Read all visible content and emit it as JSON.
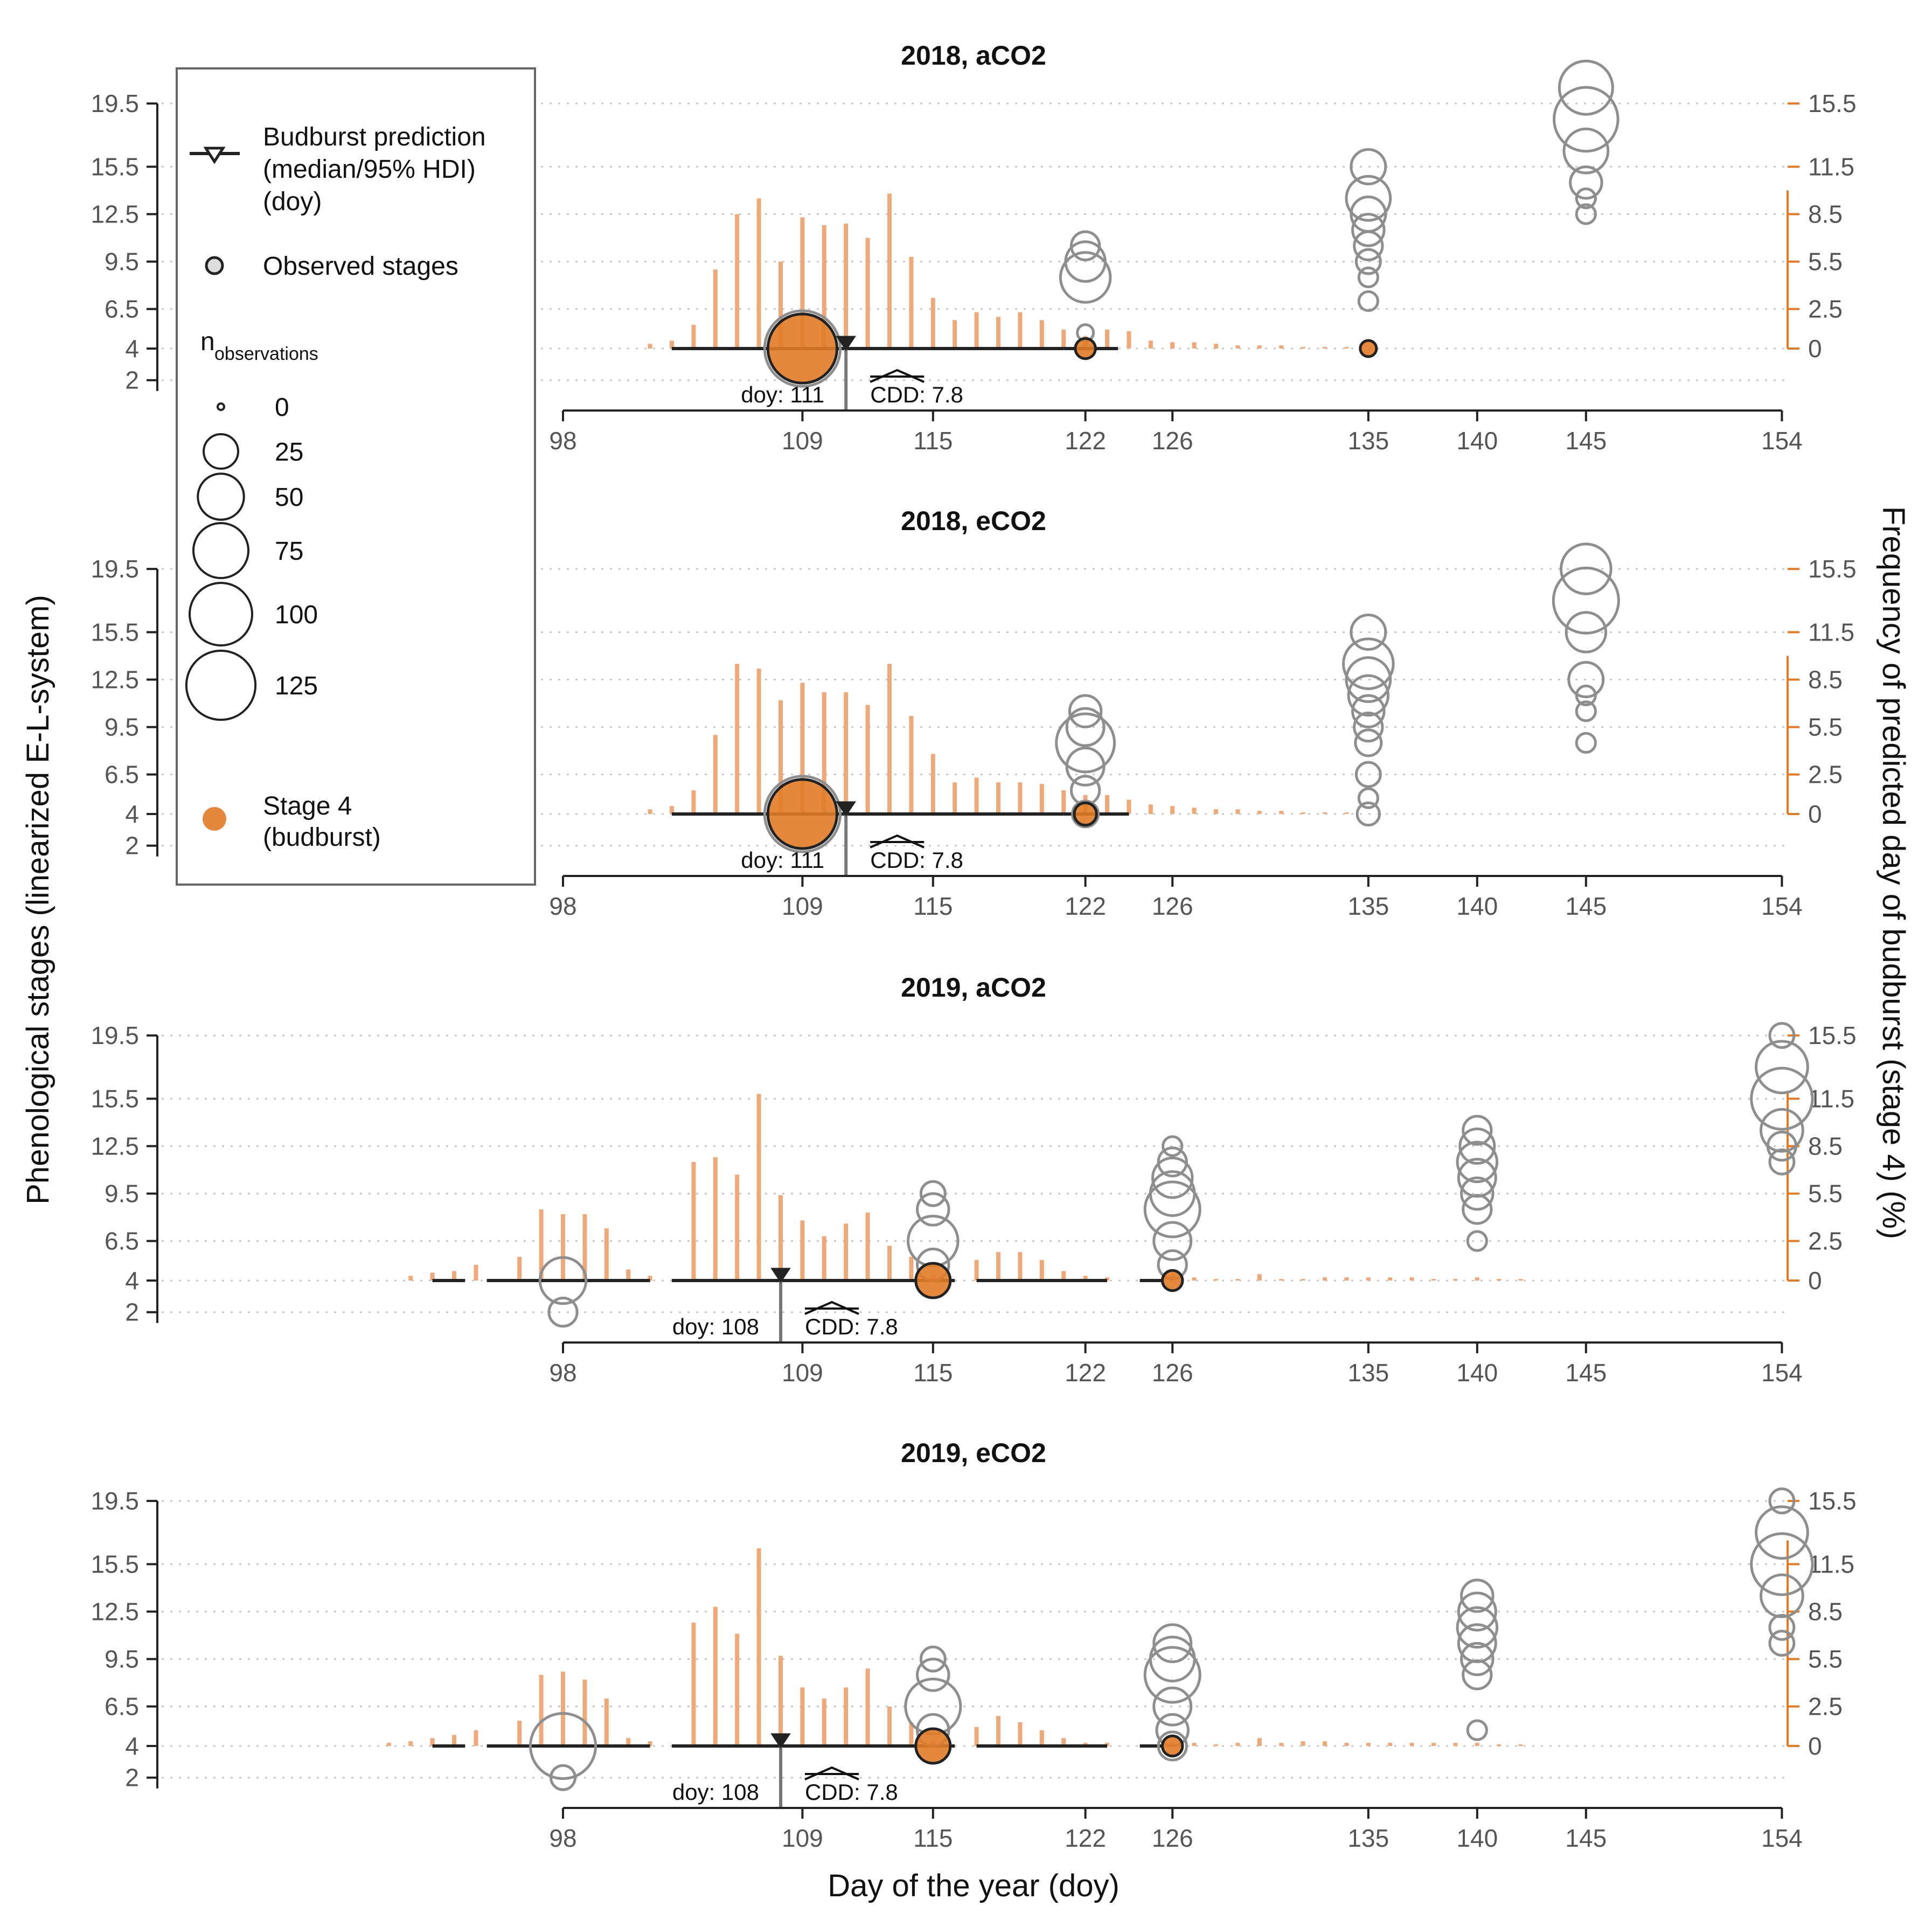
{
  "ylabel_left": "Phenological stages (linearized E-L-system)",
  "ylabel_right": "Frequency of predicted day of budburst (stage 4) (%)",
  "xlabel": "Day of the year (doy)",
  "legend": {
    "prediction_label": [
      "Budburst prediction",
      "(median/95% HDI)",
      "(doy)"
    ],
    "observed_label": "Observed stages",
    "n_title": "n",
    "n_sub": "observations",
    "size_levels": [
      "0",
      "25",
      "50",
      "75",
      "100",
      "125"
    ],
    "stage4_label": [
      "Stage 4",
      "(budburst)"
    ]
  },
  "colors": {
    "orange": "#E07B28",
    "bar": "#EDA979",
    "grey": "#8E8E8E",
    "dark": "#222222",
    "grid": "#C8C8C8",
    "text": "#555555"
  },
  "chart_data": {
    "type": "bar",
    "x_ticks": [
      98,
      109,
      115,
      122,
      126,
      135,
      140,
      145,
      154
    ],
    "y_left_ticks": [
      "19.5",
      "15.5",
      "12.5",
      "9.5",
      "6.5",
      "4",
      "2"
    ],
    "y_right_ticks": [
      "15.5",
      "11.5",
      "8.5",
      "5.5",
      "2.5",
      "0"
    ],
    "panels": [
      {
        "title": "2018, aCO2",
        "freq_x": [
          102,
          103,
          104,
          105,
          106,
          107,
          108,
          109,
          110,
          111,
          112,
          113,
          114,
          115,
          116,
          117,
          118,
          119,
          120,
          121,
          122,
          123,
          124,
          125,
          126,
          127,
          128,
          129,
          130,
          131,
          132,
          133,
          134
        ],
        "freq_y": [
          0.3,
          0.5,
          1.5,
          5,
          8.5,
          9.5,
          5.5,
          8.3,
          7.8,
          7.9,
          7,
          9.8,
          5.8,
          3.2,
          1.8,
          2.3,
          2,
          2.3,
          1.8,
          1.2,
          0.8,
          1.2,
          1.1,
          0.5,
          0.4,
          0.4,
          0.3,
          0.2,
          0.2,
          0.2,
          0.1,
          0.1,
          0.1
        ],
        "hdi_segments": [
          [
            103,
            121
          ],
          [
            121,
            123.5
          ]
        ],
        "median": 111,
        "doy_label": "doy: 111",
        "cdd_label": "CDD: 7.8",
        "obs": [
          {
            "x": 109,
            "y": 4,
            "n": 125,
            "orange": true
          },
          {
            "x": 122,
            "y": 4,
            "n": 6,
            "orange": true
          },
          {
            "x": 122,
            "y": 8.5,
            "n": 60
          },
          {
            "x": 122,
            "y": 9.5,
            "n": 35
          },
          {
            "x": 122,
            "y": 10.5,
            "n": 15
          },
          {
            "x": 122,
            "y": 5,
            "n": 3
          },
          {
            "x": 135,
            "y": 4,
            "n": 3,
            "orange": true
          },
          {
            "x": 135,
            "y": 7,
            "n": 5
          },
          {
            "x": 135,
            "y": 8.5,
            "n": 5
          },
          {
            "x": 135,
            "y": 9.5,
            "n": 10
          },
          {
            "x": 135,
            "y": 10.5,
            "n": 15
          },
          {
            "x": 135,
            "y": 11.5,
            "n": 20
          },
          {
            "x": 135,
            "y": 12.5,
            "n": 25
          },
          {
            "x": 135,
            "y": 13.5,
            "n": 45
          },
          {
            "x": 135,
            "y": 15.5,
            "n": 25
          },
          {
            "x": 145,
            "y": 12.5,
            "n": 5
          },
          {
            "x": 145,
            "y": 13.5,
            "n": 5
          },
          {
            "x": 145,
            "y": 14.5,
            "n": 20
          },
          {
            "x": 145,
            "y": 16.5,
            "n": 45
          },
          {
            "x": 145,
            "y": 18.5,
            "n": 105
          },
          {
            "x": 145,
            "y": 20.5,
            "n": 70
          }
        ]
      },
      {
        "title": "2018, eCO2",
        "freq_x": [
          102,
          103,
          104,
          105,
          106,
          107,
          108,
          109,
          110,
          111,
          112,
          113,
          114,
          115,
          116,
          117,
          118,
          119,
          120,
          121,
          122,
          123,
          124,
          125,
          126,
          127,
          128,
          129,
          130,
          131,
          132,
          133,
          134
        ],
        "freq_y": [
          0.3,
          0.5,
          1.5,
          5,
          9.5,
          9.2,
          7.2,
          8.3,
          7.7,
          7.7,
          6.9,
          9.5,
          6.2,
          3.8,
          2,
          2.3,
          2,
          2,
          1.9,
          1.5,
          1.2,
          1.2,
          0.9,
          0.6,
          0.5,
          0.4,
          0.3,
          0.3,
          0.2,
          0.2,
          0.1,
          0.1,
          0.1
        ],
        "hdi_segments": [
          [
            103,
            121
          ],
          [
            121,
            124
          ]
        ],
        "median": 111,
        "doy_label": "doy: 111",
        "cdd_label": "CDD: 7.8",
        "obs": [
          {
            "x": 109,
            "y": 4,
            "n": 125,
            "orange": true
          },
          {
            "x": 122,
            "y": 4,
            "n": 8,
            "orange": true
          },
          {
            "x": 122,
            "y": 4,
            "n": 12
          },
          {
            "x": 122,
            "y": 5.5,
            "n": 15
          },
          {
            "x": 122,
            "y": 7,
            "n": 30
          },
          {
            "x": 122,
            "y": 8.5,
            "n": 85
          },
          {
            "x": 122,
            "y": 9.5,
            "n": 30
          },
          {
            "x": 122,
            "y": 10.5,
            "n": 20
          },
          {
            "x": 135,
            "y": 4,
            "n": 8
          },
          {
            "x": 135,
            "y": 5,
            "n": 5
          },
          {
            "x": 135,
            "y": 6.5,
            "n": 10
          },
          {
            "x": 135,
            "y": 8.5,
            "n": 12
          },
          {
            "x": 135,
            "y": 9.5,
            "n": 15
          },
          {
            "x": 135,
            "y": 10.5,
            "n": 20
          },
          {
            "x": 135,
            "y": 11.5,
            "n": 35
          },
          {
            "x": 135,
            "y": 12.5,
            "n": 45
          },
          {
            "x": 135,
            "y": 13.5,
            "n": 60
          },
          {
            "x": 135,
            "y": 15.5,
            "n": 25
          },
          {
            "x": 145,
            "y": 8.5,
            "n": 5
          },
          {
            "x": 145,
            "y": 10.5,
            "n": 5
          },
          {
            "x": 145,
            "y": 11.5,
            "n": 5
          },
          {
            "x": 145,
            "y": 12.5,
            "n": 25
          },
          {
            "x": 145,
            "y": 15.5,
            "n": 35
          },
          {
            "x": 145,
            "y": 17.5,
            "n": 110
          },
          {
            "x": 145,
            "y": 19.5,
            "n": 60
          }
        ]
      },
      {
        "title": "2019, aCO2",
        "freq_x": [
          91,
          92,
          93,
          94,
          96,
          97,
          98,
          99,
          100,
          101,
          102,
          104,
          105,
          106,
          107,
          108,
          109,
          110,
          111,
          112,
          113,
          114,
          115,
          117,
          118,
          119,
          120,
          121,
          122,
          123,
          126,
          127,
          128,
          129,
          130,
          131,
          132,
          133,
          134,
          135,
          136,
          137,
          138,
          139,
          140,
          141,
          142
        ],
        "freq_y": [
          0.3,
          0.5,
          0.6,
          1,
          1.5,
          4.5,
          4.2,
          4.2,
          3.3,
          0.7,
          0.3,
          7.5,
          7.8,
          6.7,
          11.8,
          5.4,
          3.8,
          2.8,
          3.6,
          4.3,
          2.2,
          1.5,
          0.3,
          1.3,
          1.8,
          1.8,
          1.3,
          0.6,
          0.3,
          0.2,
          0.4,
          0.2,
          0.1,
          0.1,
          0.4,
          0.1,
          0.1,
          0.2,
          0.2,
          0.2,
          0.2,
          0.2,
          0.1,
          0.1,
          0.2,
          0.1,
          0.1
        ],
        "hdi_segments": [
          [
            92,
            93.5
          ],
          [
            94.5,
            102
          ],
          [
            103,
            116
          ],
          [
            117,
            123
          ],
          [
            124.5,
            125.5
          ]
        ],
        "median": 108,
        "doy_label": "doy: 108",
        "cdd_label": "CDD: 7.8",
        "obs": [
          {
            "x": 98,
            "y": 4,
            "n": 50
          },
          {
            "x": 98,
            "y": 2,
            "n": 15
          },
          {
            "x": 115,
            "y": 4,
            "n": 25,
            "orange": true
          },
          {
            "x": 115,
            "y": 5,
            "n": 20
          },
          {
            "x": 115,
            "y": 6.5,
            "n": 60
          },
          {
            "x": 115,
            "y": 8.5,
            "n": 20
          },
          {
            "x": 115,
            "y": 9.5,
            "n": 10
          },
          {
            "x": 126,
            "y": 4,
            "n": 6,
            "orange": true
          },
          {
            "x": 126,
            "y": 5,
            "n": 15
          },
          {
            "x": 126,
            "y": 6.5,
            "n": 30
          },
          {
            "x": 126,
            "y": 8.5,
            "n": 75
          },
          {
            "x": 126,
            "y": 9.5,
            "n": 45
          },
          {
            "x": 126,
            "y": 10.5,
            "n": 35
          },
          {
            "x": 126,
            "y": 11.5,
            "n": 15
          },
          {
            "x": 126,
            "y": 12.5,
            "n": 5
          },
          {
            "x": 140,
            "y": 6.5,
            "n": 5
          },
          {
            "x": 140,
            "y": 8.5,
            "n": 15
          },
          {
            "x": 140,
            "y": 9.5,
            "n": 20
          },
          {
            "x": 140,
            "y": 10.5,
            "n": 30
          },
          {
            "x": 140,
            "y": 11.5,
            "n": 35
          },
          {
            "x": 140,
            "y": 12.5,
            "n": 25
          },
          {
            "x": 140,
            "y": 13.5,
            "n": 15
          },
          {
            "x": 154,
            "y": 11.5,
            "n": 10
          },
          {
            "x": 154,
            "y": 12.5,
            "n": 15
          },
          {
            "x": 154,
            "y": 13.5,
            "n": 40
          },
          {
            "x": 154,
            "y": 15.5,
            "n": 95
          },
          {
            "x": 154,
            "y": 17.5,
            "n": 65
          },
          {
            "x": 154,
            "y": 19.5,
            "n": 10
          }
        ]
      },
      {
        "title": "2019, eCO2",
        "freq_x": [
          90,
          91,
          92,
          93,
          94,
          96,
          97,
          98,
          99,
          100,
          101,
          102,
          104,
          105,
          106,
          107,
          108,
          109,
          110,
          111,
          112,
          113,
          114,
          115,
          117,
          118,
          119,
          120,
          121,
          122,
          123,
          126,
          127,
          128,
          129,
          130,
          131,
          132,
          133,
          134,
          135,
          136,
          137,
          138,
          139,
          140,
          141,
          142
        ],
        "freq_y": [
          0.2,
          0.3,
          0.5,
          0.7,
          1,
          1.6,
          4.5,
          4.7,
          4.2,
          3,
          0.5,
          0.3,
          7.8,
          8.8,
          7.1,
          12.5,
          5.7,
          3.7,
          3,
          3.7,
          4.9,
          2.5,
          1.5,
          0.3,
          1.2,
          1.9,
          1.5,
          1,
          0.5,
          0.2,
          0.2,
          0.2,
          0.2,
          0.1,
          0.2,
          0.5,
          0.2,
          0.3,
          0.3,
          0.2,
          0.2,
          0.2,
          0.2,
          0.2,
          0.2,
          0.2,
          0.1,
          0.1
        ],
        "hdi_segments": [
          [
            92,
            93.5
          ],
          [
            94.5,
            102
          ],
          [
            103,
            116
          ],
          [
            117,
            123
          ],
          [
            124.5,
            125.5
          ]
        ],
        "median": 108,
        "doy_label": "doy: 108",
        "cdd_label": "CDD: 7.8",
        "obs": [
          {
            "x": 98,
            "y": 4,
            "n": 110
          },
          {
            "x": 98,
            "y": 2,
            "n": 10
          },
          {
            "x": 115,
            "y": 4,
            "n": 25,
            "orange": true
          },
          {
            "x": 115,
            "y": 5,
            "n": 20
          },
          {
            "x": 115,
            "y": 6.5,
            "n": 75
          },
          {
            "x": 115,
            "y": 8.5,
            "n": 20
          },
          {
            "x": 115,
            "y": 9.5,
            "n": 10
          },
          {
            "x": 126,
            "y": 4,
            "n": 6,
            "orange": true
          },
          {
            "x": 126,
            "y": 4,
            "n": 15
          },
          {
            "x": 126,
            "y": 5,
            "n": 20
          },
          {
            "x": 126,
            "y": 6.5,
            "n": 30
          },
          {
            "x": 126,
            "y": 8.5,
            "n": 75
          },
          {
            "x": 126,
            "y": 9.5,
            "n": 45
          },
          {
            "x": 126,
            "y": 10.5,
            "n": 30
          },
          {
            "x": 140,
            "y": 5,
            "n": 5
          },
          {
            "x": 140,
            "y": 8.5,
            "n": 15
          },
          {
            "x": 140,
            "y": 9.5,
            "n": 20
          },
          {
            "x": 140,
            "y": 10.5,
            "n": 30
          },
          {
            "x": 140,
            "y": 11.5,
            "n": 35
          },
          {
            "x": 140,
            "y": 12.5,
            "n": 30
          },
          {
            "x": 140,
            "y": 13.5,
            "n": 20
          },
          {
            "x": 154,
            "y": 10.5,
            "n": 10
          },
          {
            "x": 154,
            "y": 11.5,
            "n": 10
          },
          {
            "x": 154,
            "y": 13.5,
            "n": 40
          },
          {
            "x": 154,
            "y": 15.5,
            "n": 95
          },
          {
            "x": 154,
            "y": 17.5,
            "n": 65
          },
          {
            "x": 154,
            "y": 19.5,
            "n": 10
          }
        ]
      }
    ]
  }
}
